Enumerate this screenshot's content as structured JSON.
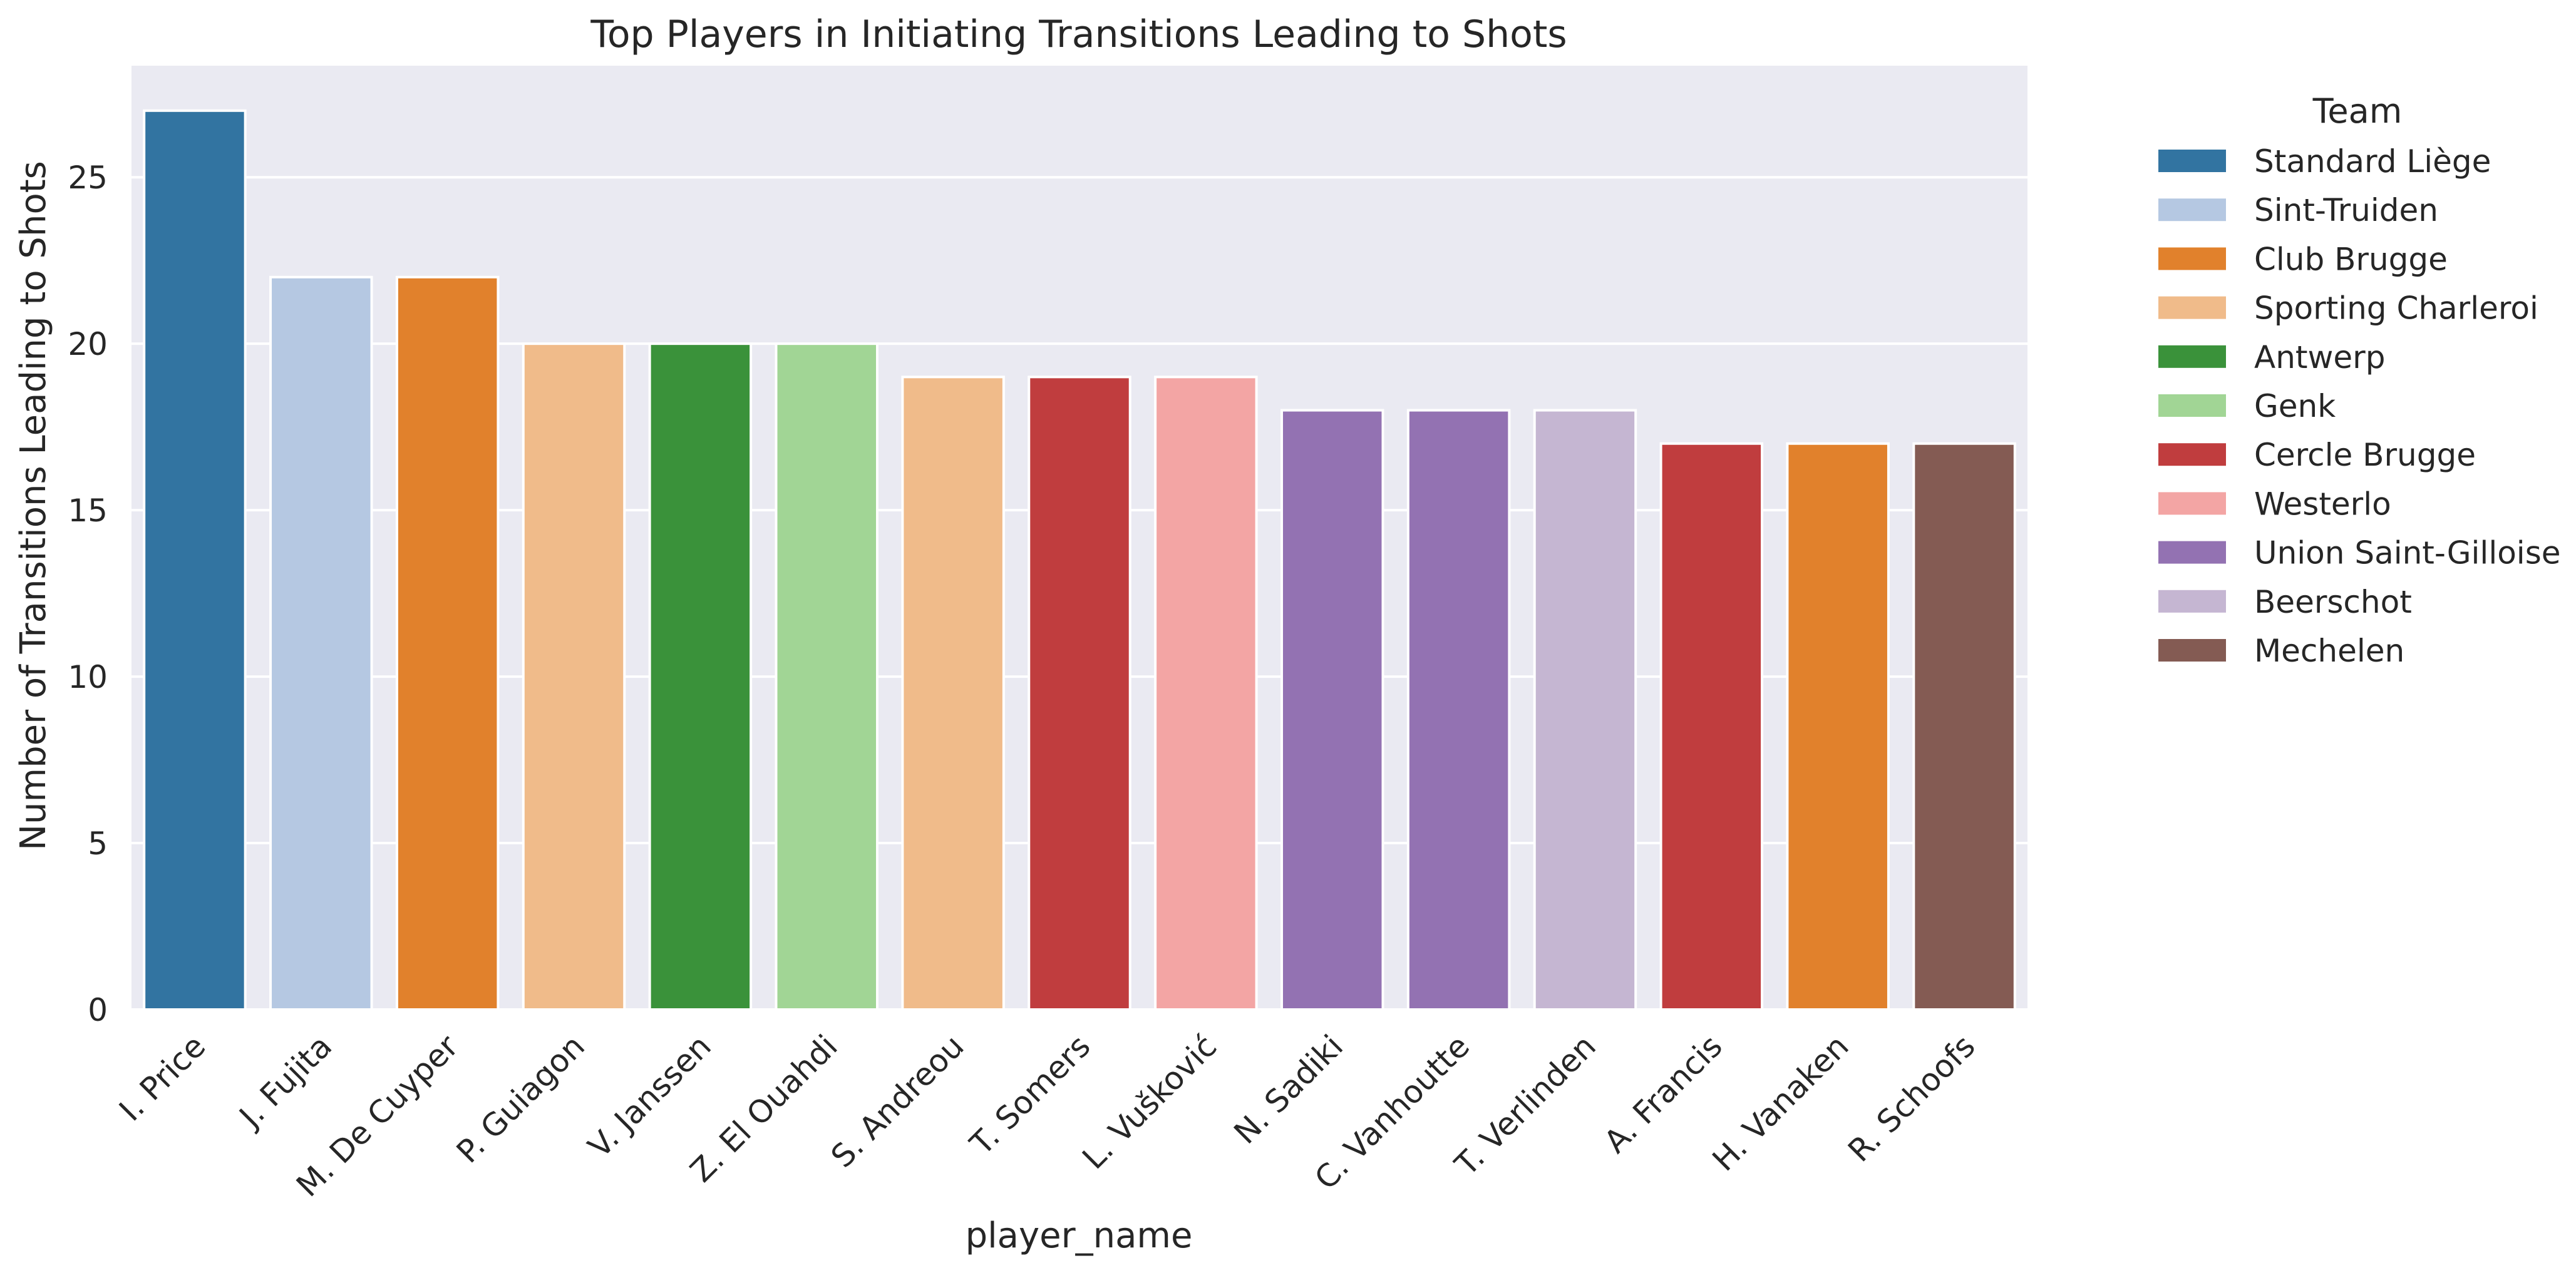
{
  "chart_data": {
    "type": "bar",
    "title": "Top Players in Initiating Transitions Leading to Shots",
    "xlabel": "player_name",
    "ylabel": "Number of Transitions Leading to Shots",
    "ylim": [
      0,
      28.35
    ],
    "yticks": [
      0,
      5,
      10,
      15,
      20,
      25
    ],
    "grid": true,
    "legend": {
      "title": "Team",
      "placement": "outside-right",
      "entries": [
        {
          "name": "Standard Liège",
          "color": "#3274a1"
        },
        {
          "name": "Sint-Truiden",
          "color": "#b5c8e2"
        },
        {
          "name": "Club Brugge",
          "color": "#e1812c"
        },
        {
          "name": "Sporting Charleroi",
          "color": "#f0bb8a"
        },
        {
          "name": "Antwerp",
          "color": "#3a923a"
        },
        {
          "name": "Genk",
          "color": "#a1d595"
        },
        {
          "name": "Cercle Brugge",
          "color": "#c03d3e"
        },
        {
          "name": "Westerlo",
          "color": "#f3a5a4"
        },
        {
          "name": "Union Saint-Gilloise",
          "color": "#9372b2"
        },
        {
          "name": "Beerschot",
          "color": "#c5b6d2"
        },
        {
          "name": "Mechelen",
          "color": "#845b53"
        }
      ]
    },
    "categories": [
      "I. Price",
      "J. Fujita",
      "M. De Cuyper",
      "P. Guiagon",
      "V. Janssen",
      "Z. El Ouahdi",
      "S. Andreou",
      "T. Somers",
      "L. Vušković",
      "N. Sadiki",
      "C. Vanhoutte",
      "T. Verlinden",
      "A. Francis",
      "H. Vanaken",
      "R. Schoofs"
    ],
    "values": [
      27,
      22,
      22,
      20,
      20,
      20,
      19,
      19,
      19,
      18,
      18,
      18,
      17,
      17,
      17
    ],
    "teams": [
      "Standard Liège",
      "Sint-Truiden",
      "Club Brugge",
      "Sporting Charleroi",
      "Antwerp",
      "Genk",
      "Sporting Charleroi",
      "Cercle Brugge",
      "Westerlo",
      "Union Saint-Gilloise",
      "Union Saint-Gilloise",
      "Beerschot",
      "Cercle Brugge",
      "Club Brugge",
      "Mechelen"
    ],
    "colors": {
      "plot_background": "#eaeaf2",
      "grid": "#ffffff"
    }
  }
}
